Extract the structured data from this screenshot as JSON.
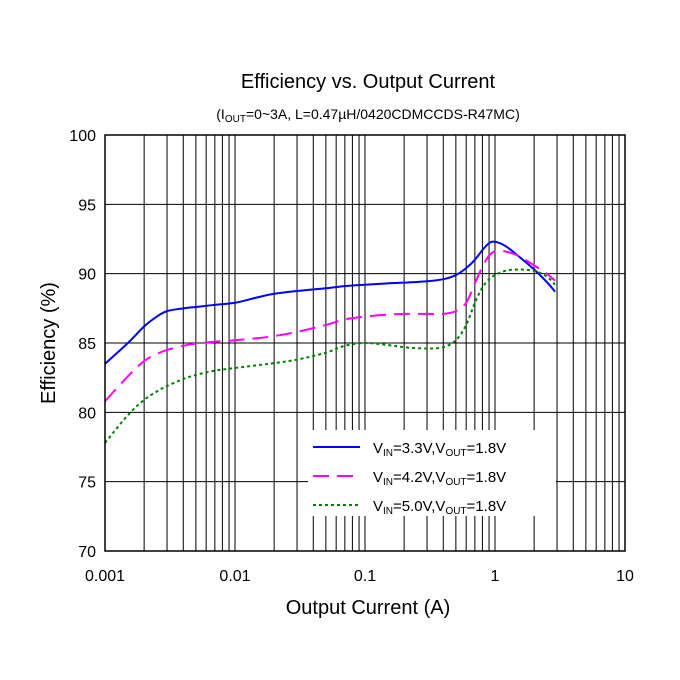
{
  "chart_data": {
    "type": "line",
    "title": "Efficiency vs. Output Current",
    "subtitle": {
      "prefix": "(I",
      "sub": "OUT",
      "suffix": "=0~3A, L=0.47µH/0420CDMCCDS-R47MC)"
    },
    "xlabel": "Output Current (A)",
    "ylabel": "Efficiency (%)",
    "x_scale": "log",
    "xlim": [
      0.001,
      10
    ],
    "ylim": [
      70,
      100
    ],
    "x_ticks": [
      {
        "value": 0.001,
        "label": "0.001"
      },
      {
        "value": 0.01,
        "label": "0.01"
      },
      {
        "value": 0.1,
        "label": "0.1"
      },
      {
        "value": 1,
        "label": "1"
      },
      {
        "value": 10,
        "label": "10"
      }
    ],
    "y_ticks": [
      {
        "value": 70,
        "label": "70"
      },
      {
        "value": 75,
        "label": "75"
      },
      {
        "value": 80,
        "label": "80"
      },
      {
        "value": 85,
        "label": "85"
      },
      {
        "value": 90,
        "label": "90"
      },
      {
        "value": 95,
        "label": "95"
      },
      {
        "value": 100,
        "label": "100"
      }
    ],
    "grid": true,
    "legend_position": "bottom-right",
    "series": [
      {
        "name": "VIN=3.3V,VOUT=1.8V",
        "legend": {
          "v1": "V",
          "s1": "IN",
          "m1": "=3.3V,V",
          "s2": "OUT",
          "e": "=1.8V"
        },
        "color": "#0000ff",
        "dash": "solid",
        "points": [
          [
            0.001,
            83.5
          ],
          [
            0.0015,
            85.0
          ],
          [
            0.002,
            86.2
          ],
          [
            0.0025,
            86.9
          ],
          [
            0.003,
            87.3
          ],
          [
            0.004,
            87.5
          ],
          [
            0.005,
            87.6
          ],
          [
            0.007,
            87.75
          ],
          [
            0.01,
            87.9
          ],
          [
            0.015,
            88.3
          ],
          [
            0.02,
            88.55
          ],
          [
            0.03,
            88.75
          ],
          [
            0.05,
            88.95
          ],
          [
            0.07,
            89.1
          ],
          [
            0.1,
            89.2
          ],
          [
            0.15,
            89.3
          ],
          [
            0.2,
            89.35
          ],
          [
            0.3,
            89.45
          ],
          [
            0.4,
            89.6
          ],
          [
            0.5,
            89.9
          ],
          [
            0.6,
            90.4
          ],
          [
            0.7,
            91.0
          ],
          [
            0.8,
            91.7
          ],
          [
            0.9,
            92.2
          ],
          [
            1.0,
            92.3
          ],
          [
            1.2,
            92.0
          ],
          [
            1.5,
            91.3
          ],
          [
            2.0,
            90.3
          ],
          [
            2.5,
            89.4
          ],
          [
            2.9,
            88.7
          ]
        ]
      },
      {
        "name": "VIN=4.2V,VOUT=1.8V",
        "legend": {
          "v1": "V",
          "s1": "IN",
          "m1": "=4.2V,V",
          "s2": "OUT",
          "e": "=1.8V"
        },
        "color": "#ff00ff",
        "dash": "dashed",
        "points": [
          [
            0.001,
            80.8
          ],
          [
            0.0015,
            82.6
          ],
          [
            0.002,
            83.7
          ],
          [
            0.0025,
            84.2
          ],
          [
            0.003,
            84.5
          ],
          [
            0.004,
            84.8
          ],
          [
            0.005,
            84.95
          ],
          [
            0.007,
            85.1
          ],
          [
            0.01,
            85.2
          ],
          [
            0.015,
            85.35
          ],
          [
            0.02,
            85.5
          ],
          [
            0.03,
            85.8
          ],
          [
            0.05,
            86.3
          ],
          [
            0.07,
            86.7
          ],
          [
            0.1,
            86.9
          ],
          [
            0.15,
            87.05
          ],
          [
            0.2,
            87.1
          ],
          [
            0.3,
            87.1
          ],
          [
            0.4,
            87.1
          ],
          [
            0.5,
            87.3
          ],
          [
            0.6,
            87.9
          ],
          [
            0.7,
            89.3
          ],
          [
            0.8,
            90.5
          ],
          [
            0.9,
            91.3
          ],
          [
            1.0,
            91.6
          ],
          [
            1.2,
            91.6
          ],
          [
            1.5,
            91.3
          ],
          [
            2.0,
            90.6
          ],
          [
            2.5,
            90.0
          ],
          [
            2.9,
            89.5
          ]
        ]
      },
      {
        "name": "VIN=5.0V,VOUT=1.8V",
        "legend": {
          "v1": "V",
          "s1": "IN",
          "m1": "=5.0V,V",
          "s2": "OUT",
          "e": "=1.8V"
        },
        "color": "#008000",
        "dash": "dotted",
        "points": [
          [
            0.001,
            77.8
          ],
          [
            0.0015,
            79.8
          ],
          [
            0.002,
            80.9
          ],
          [
            0.0025,
            81.5
          ],
          [
            0.003,
            81.9
          ],
          [
            0.004,
            82.4
          ],
          [
            0.005,
            82.7
          ],
          [
            0.007,
            83.0
          ],
          [
            0.01,
            83.2
          ],
          [
            0.015,
            83.4
          ],
          [
            0.02,
            83.55
          ],
          [
            0.03,
            83.8
          ],
          [
            0.05,
            84.3
          ],
          [
            0.07,
            84.8
          ],
          [
            0.1,
            85.0
          ],
          [
            0.15,
            84.85
          ],
          [
            0.2,
            84.7
          ],
          [
            0.3,
            84.6
          ],
          [
            0.4,
            84.7
          ],
          [
            0.5,
            85.2
          ],
          [
            0.6,
            86.3
          ],
          [
            0.7,
            87.9
          ],
          [
            0.8,
            89.0
          ],
          [
            0.9,
            89.6
          ],
          [
            1.0,
            89.9
          ],
          [
            1.2,
            90.2
          ],
          [
            1.5,
            90.3
          ],
          [
            2.0,
            90.2
          ],
          [
            2.5,
            89.8
          ],
          [
            2.9,
            89.2
          ]
        ]
      }
    ]
  }
}
